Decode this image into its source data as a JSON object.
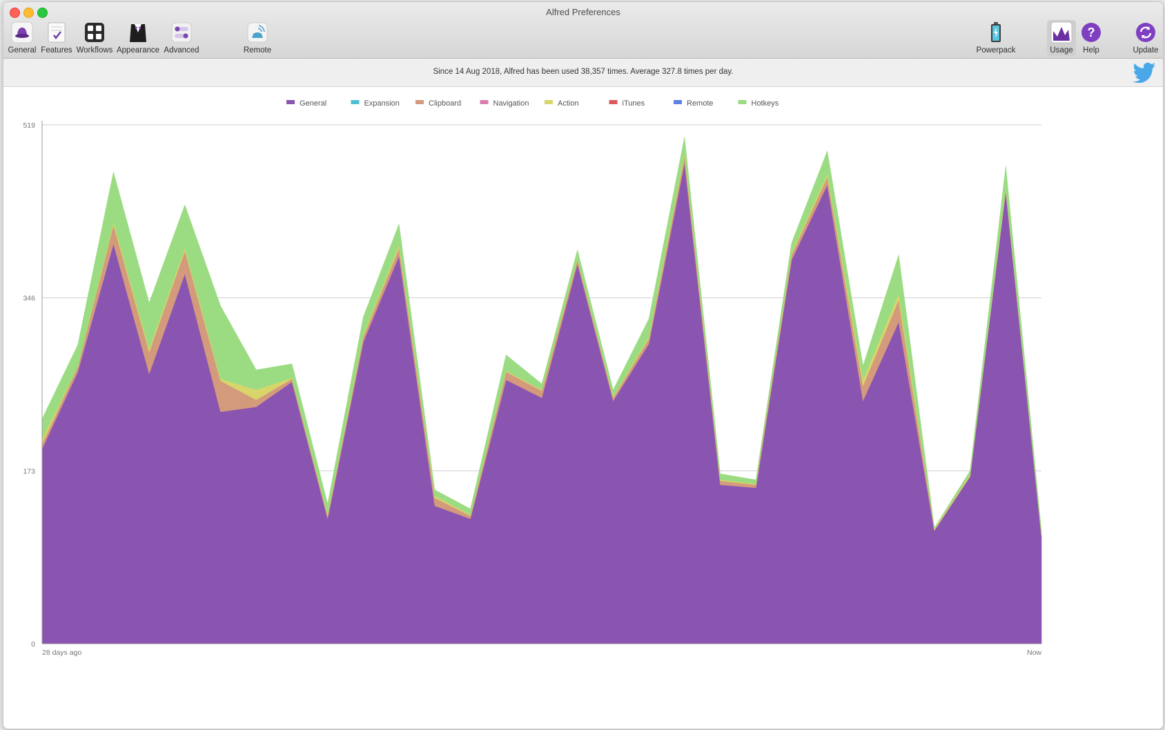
{
  "window": {
    "title": "Alfred Preferences"
  },
  "toolbar": {
    "left": [
      {
        "label": "General",
        "icon": "hat-icon"
      },
      {
        "label": "Features",
        "icon": "checklist-icon"
      },
      {
        "label": "Workflows",
        "icon": "workflows-icon"
      },
      {
        "label": "Appearance",
        "icon": "tuxedo-icon"
      },
      {
        "label": "Advanced",
        "icon": "toggles-icon"
      },
      {
        "label": "Remote",
        "icon": "remote-icon"
      }
    ],
    "right": [
      {
        "label": "Powerpack",
        "icon": "battery-icon"
      },
      {
        "label": "Usage",
        "icon": "usage-chart-icon",
        "active": true
      },
      {
        "label": "Help",
        "icon": "help-icon"
      },
      {
        "label": "Update",
        "icon": "update-icon"
      }
    ]
  },
  "info": {
    "text": "Since 14 Aug 2018, Alfred has been used 38,357 times. Average 327.8 times per day."
  },
  "colors": {
    "General": "#8a55b1",
    "Expansion": "#4cbfd3",
    "Clipboard": "#d49a7c",
    "Navigation": "#d97fae",
    "Action": "#d8d66a",
    "iTunes": "#d9595c",
    "Remote": "#5d7fe6",
    "Hotkeys": "#9bdc82"
  },
  "chart_data": {
    "type": "area",
    "stacked": true,
    "x_start_label": "28 days ago",
    "x_end_label": "Now",
    "y_ticks": [
      0,
      173,
      346,
      519
    ],
    "ylim": [
      0,
      519
    ],
    "legend": [
      "General",
      "Expansion",
      "Clipboard",
      "Navigation",
      "Action",
      "iTunes",
      "Remote",
      "Hotkeys"
    ],
    "legend_position": "top-center",
    "grid": true,
    "series": [
      {
        "name": "General",
        "values": [
          195,
          272,
          400,
          270,
          370,
          232,
          237,
          262,
          125,
          302,
          388,
          138,
          125,
          264,
          246,
          380,
          243,
          300,
          481,
          159,
          156,
          384,
          459,
          243,
          322,
          113,
          167,
          452,
          107
        ]
      },
      {
        "name": "Expansion",
        "values": [
          0,
          0,
          0,
          0,
          0,
          0,
          0,
          0,
          0,
          0,
          0,
          0,
          0,
          0,
          0,
          0,
          0,
          0,
          0,
          0,
          0,
          0,
          0,
          0,
          0,
          0,
          0,
          0,
          0
        ]
      },
      {
        "name": "Clipboard",
        "values": [
          5,
          5,
          19,
          22,
          23,
          31,
          7,
          3,
          3,
          5,
          8,
          8,
          3,
          8,
          7,
          4,
          3,
          5,
          7,
          4,
          3,
          5,
          8,
          15,
          22,
          1,
          1,
          3,
          1
        ]
      },
      {
        "name": "Navigation",
        "values": [
          0,
          0,
          0,
          0,
          0,
          0,
          0,
          0,
          0,
          0,
          0,
          0,
          0,
          0,
          0,
          0,
          0,
          0,
          0,
          0,
          0,
          0,
          0,
          0,
          0,
          0,
          0,
          0,
          0
        ]
      },
      {
        "name": "Action",
        "values": [
          5,
          0,
          3,
          3,
          3,
          2,
          10,
          1,
          1,
          2,
          3,
          2,
          1,
          1,
          1,
          1,
          1,
          2,
          3,
          1,
          1,
          2,
          3,
          6,
          6,
          1,
          1,
          1,
          1
        ]
      },
      {
        "name": "iTunes",
        "values": [
          0,
          0,
          0,
          0,
          0,
          0,
          0,
          0,
          0,
          0,
          0,
          0,
          0,
          0,
          0,
          0,
          0,
          0,
          0,
          0,
          0,
          0,
          0,
          0,
          0,
          0,
          0,
          0,
          0
        ]
      },
      {
        "name": "Remote",
        "values": [
          0,
          0,
          0,
          0,
          0,
          0,
          0,
          0,
          0,
          0,
          0,
          0,
          0,
          0,
          0,
          0,
          0,
          0,
          0,
          0,
          0,
          0,
          0,
          0,
          0,
          0,
          0,
          0,
          0
        ]
      },
      {
        "name": "Hotkeys",
        "values": [
          20,
          22,
          50,
          46,
          43,
          73,
          20,
          14,
          11,
          18,
          21,
          6,
          6,
          16,
          6,
          9,
          7,
          18,
          16,
          6,
          4,
          10,
          23,
          14,
          39,
          1,
          4,
          22,
          4
        ]
      }
    ]
  }
}
